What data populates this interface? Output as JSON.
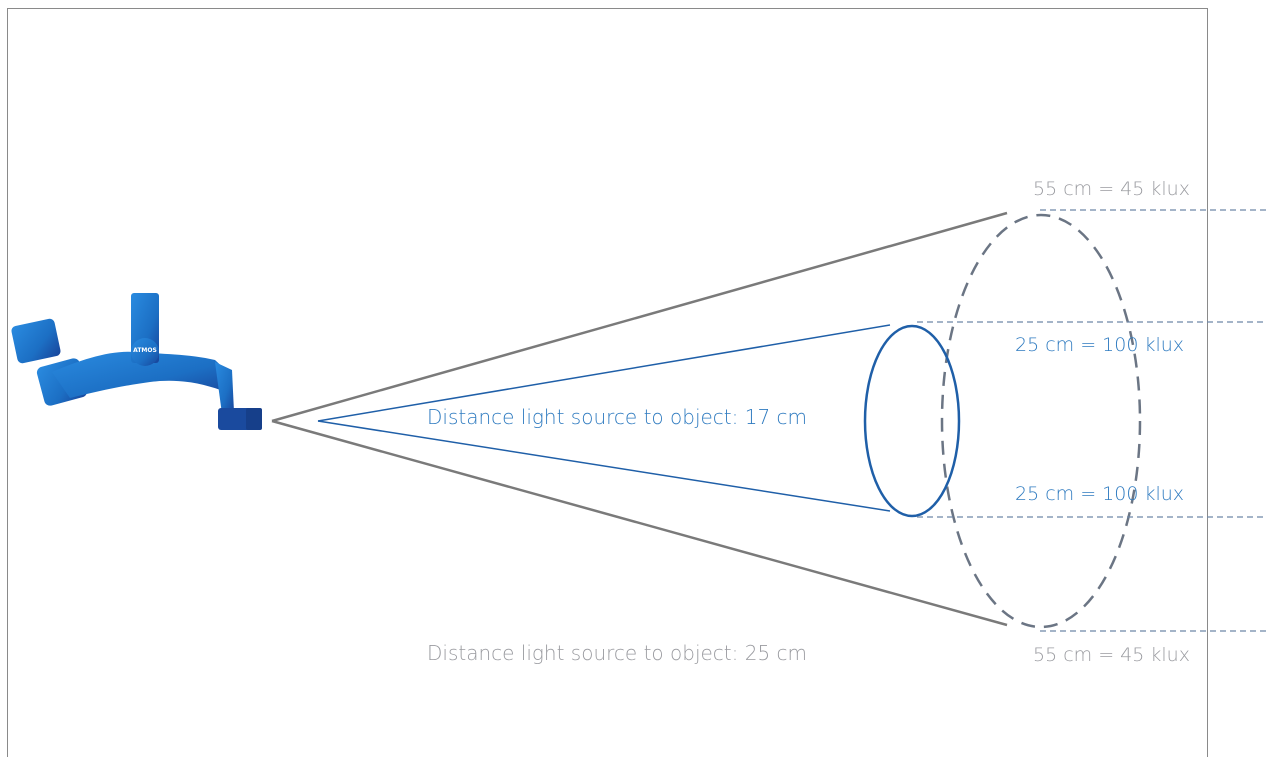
{
  "labels": {
    "inner_distance": "Distance light source to object: 17 cm",
    "outer_distance": "Distance light source to object: 25 cm",
    "outer_top": "55 cm = 45 klux",
    "inner_top": "25 cm = 100 klux",
    "inner_bottom": "25 cm = 100 klux",
    "outer_bottom": "55 cm = 45 klux",
    "logo": "ATMOS"
  },
  "colors": {
    "inner_beam": "#1f5fa8",
    "outer_beam": "#7a7a7a",
    "outer_spot": "#6b7584",
    "guide_line": "#6d87a8",
    "inner_label": "#2f7bc0",
    "outer_label": "#9a9ba0",
    "lamp": "#1c6fc4"
  },
  "icons": {
    "lamp": "surgical-headlight-lamp-icon"
  }
}
